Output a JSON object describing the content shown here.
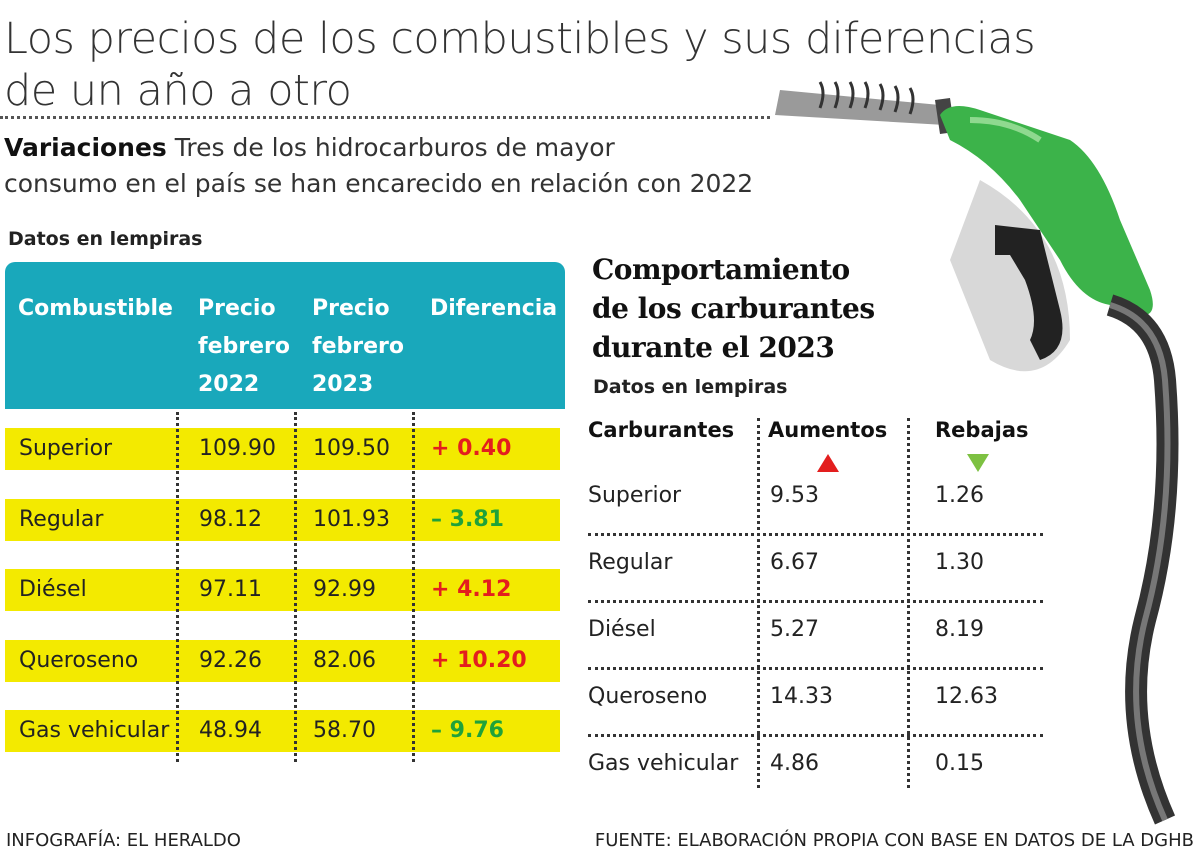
{
  "title": {
    "line1": "Los precios de los combustibles y sus diferencias",
    "line2": "de un año a otro"
  },
  "subtitle": {
    "lead": "Variaciones",
    "line1": " Tres de los hidrocarburos de mayor",
    "line2": "consumo en el país se han encarecido en relación con 2022"
  },
  "colors": {
    "header": "#19a8bb",
    "row_highlight": "#f3ea00",
    "increase": "#e31e1e",
    "decrease": "#1fa23a",
    "nozzle": "#3cb34a"
  },
  "chart_data": [
    {
      "type": "table",
      "units": "Datos en lempiras",
      "headers": [
        "Combustible",
        "Precio\nfebrero\n2022",
        "Precio\nfebrero\n2023",
        "Diferencia"
      ],
      "rows": [
        {
          "name": "Superior",
          "p2022": "109.90",
          "p2023": "109.50",
          "diff": "+ 0.40",
          "direction": "up"
        },
        {
          "name": "Regular",
          "p2022": "98.12",
          "p2023": "101.93",
          "diff": "– 3.81",
          "direction": "down"
        },
        {
          "name": "Diésel",
          "p2022": "97.11",
          "p2023": "92.99",
          "diff": "+ 4.12",
          "direction": "up"
        },
        {
          "name": "Queroseno",
          "p2022": "92.26",
          "p2023": "82.06",
          "diff": "+ 10.20",
          "direction": "up"
        },
        {
          "name": "Gas vehicular",
          "p2022": "48.94",
          "p2023": "58.70",
          "diff": "– 9.76",
          "direction": "down"
        }
      ]
    },
    {
      "type": "table",
      "title": "Comportamiento\nde los carburantes\ndurante el 2023",
      "units": "Datos en lempiras",
      "headers": [
        "Carburantes",
        "Aumentos",
        "Rebajas"
      ],
      "icons": [
        "triangle-up-icon",
        "triangle-down-icon"
      ],
      "rows": [
        {
          "name": "Superior",
          "aumentos": "9.53",
          "rebajas": "1.26"
        },
        {
          "name": "Regular",
          "aumentos": "6.67",
          "rebajas": "1.30"
        },
        {
          "name": "Diésel",
          "aumentos": "5.27",
          "rebajas": "8.19"
        },
        {
          "name": "Queroseno",
          "aumentos": "14.33",
          "rebajas": "12.63"
        },
        {
          "name": "Gas vehicular",
          "aumentos": "4.86",
          "rebajas": "0.15"
        }
      ]
    }
  ],
  "footer": {
    "credit": "INFOGRAFÍA: EL HERALDO",
    "source": "FUENTE: ELABORACIÓN PROPIA CON BASE EN DATOS DE LA DGHB"
  }
}
